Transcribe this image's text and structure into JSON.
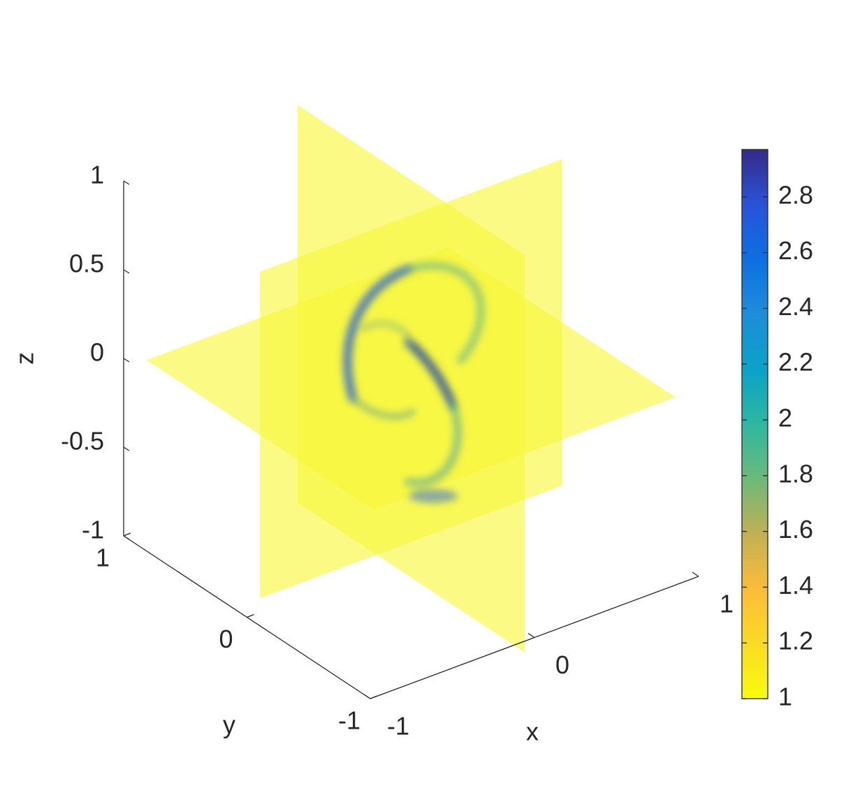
{
  "chart_data": {
    "type": "slice3d",
    "xlabel": "x",
    "ylabel": "y",
    "zlabel": "z",
    "xlim": [
      -1,
      1
    ],
    "ylim": [
      -1,
      1
    ],
    "zlim": [
      -1,
      1
    ],
    "xticks": [
      -1,
      0,
      1
    ],
    "yticks": [
      -1,
      0,
      1
    ],
    "zticks": [
      -1,
      -0.5,
      0,
      0.5,
      1
    ],
    "colorbar": {
      "lim": [
        1,
        2.97
      ],
      "ticks": [
        1,
        1.2,
        1.4,
        1.6,
        1.8,
        2,
        2.2,
        2.4,
        2.6,
        2.8
      ]
    }
  }
}
